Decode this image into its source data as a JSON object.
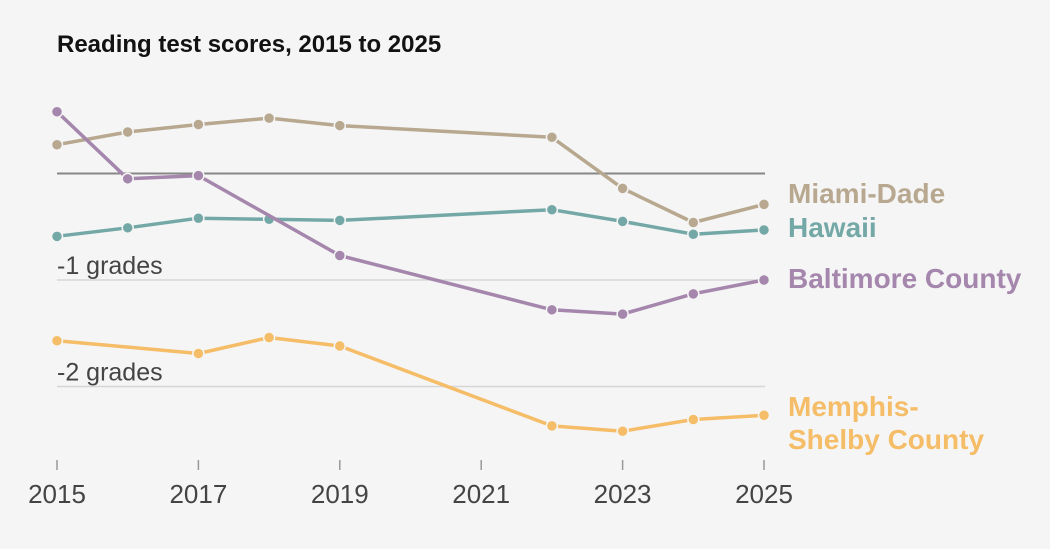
{
  "chart_data": {
    "type": "line",
    "title": "Reading test scores, 2015 to 2025",
    "xlabel": "",
    "ylabel": "",
    "x_ticks": [
      "2015",
      "2017",
      "2019",
      "2021",
      "2023",
      "2025"
    ],
    "xlim": [
      2015,
      2025
    ],
    "ylim": [
      -2.7,
      0.6
    ],
    "grid": true,
    "reference_lines": [
      {
        "value": 0,
        "label": ""
      },
      {
        "value": -1,
        "label": "-1 grades"
      },
      {
        "value": -2,
        "label": "-2 grades"
      }
    ],
    "series": [
      {
        "name": "Miami-Dade",
        "color": "#b7a88f",
        "x": [
          2015,
          2016,
          2017,
          2018,
          2019,
          2022,
          2023,
          2024,
          2025
        ],
        "y": [
          0.27,
          0.39,
          0.46,
          0.52,
          0.45,
          0.34,
          -0.14,
          -0.46,
          -0.29
        ]
      },
      {
        "name": "Hawaii",
        "color": "#74a8a7",
        "x": [
          2015,
          2016,
          2017,
          2018,
          2019,
          2022,
          2023,
          2024,
          2025
        ],
        "y": [
          -0.59,
          -0.51,
          -0.42,
          -0.43,
          -0.44,
          -0.34,
          -0.45,
          -0.57,
          -0.53
        ]
      },
      {
        "name": "Baltimore County",
        "color": "#a586ac",
        "x": [
          2015,
          2016,
          2017,
          2019,
          2022,
          2023,
          2024,
          2025
        ],
        "y": [
          0.58,
          -0.05,
          -0.02,
          -0.77,
          -1.28,
          -1.32,
          -1.13,
          -1.0
        ]
      },
      {
        "name": "Memphis-Shelby County",
        "label_lines": [
          "Memphis-",
          "Shelby County"
        ],
        "color": "#f5bd67",
        "x": [
          2015,
          2017,
          2018,
          2019,
          2022,
          2023,
          2024,
          2025
        ],
        "y": [
          -1.57,
          -1.69,
          -1.54,
          -1.62,
          -2.37,
          -2.42,
          -2.31,
          -2.27
        ]
      }
    ]
  }
}
